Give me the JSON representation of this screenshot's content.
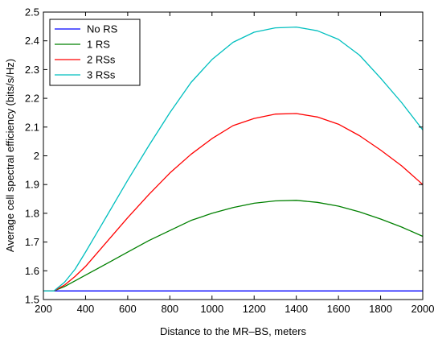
{
  "chart_data": {
    "type": "line",
    "title": "",
    "xlabel": "Distance to the MR–BS, meters",
    "ylabel": "Average cell spectral efficiency (bits/s/Hz)",
    "xlim": [
      200,
      2000
    ],
    "ylim": [
      1.5,
      2.5
    ],
    "x_ticks": [
      "200",
      "400",
      "600",
      "800",
      "1000",
      "1200",
      "1400",
      "1600",
      "1800",
      "2000"
    ],
    "y_ticks": [
      "1.5",
      "1.6",
      "1.7",
      "1.8",
      "1.9",
      "2",
      "2.1",
      "2.2",
      "2.3",
      "2.4",
      "2.5"
    ],
    "grid": false,
    "legend_position": "top-left",
    "x": [
      200,
      250,
      300,
      350,
      400,
      500,
      600,
      700,
      800,
      900,
      1000,
      1100,
      1200,
      1300,
      1400,
      1500,
      1600,
      1700,
      1800,
      1900,
      2000
    ],
    "series": [
      {
        "name": "No RS",
        "color": "#0000ff",
        "values": [
          1.53,
          1.53,
          1.53,
          1.53,
          1.53,
          1.53,
          1.53,
          1.53,
          1.53,
          1.53,
          1.53,
          1.53,
          1.53,
          1.53,
          1.53,
          1.53,
          1.53,
          1.53,
          1.53,
          1.53,
          1.53
        ]
      },
      {
        "name": "1 RS",
        "color": "#008000",
        "values": [
          1.53,
          1.53,
          1.545,
          1.565,
          1.585,
          1.625,
          1.665,
          1.705,
          1.74,
          1.775,
          1.8,
          1.82,
          1.835,
          1.843,
          1.845,
          1.838,
          1.825,
          1.805,
          1.78,
          1.752,
          1.72
        ]
      },
      {
        "name": "2 RSs",
        "color": "#ff0000",
        "values": [
          1.53,
          1.53,
          1.55,
          1.58,
          1.615,
          1.7,
          1.785,
          1.865,
          1.94,
          2.005,
          2.06,
          2.105,
          2.13,
          2.145,
          2.147,
          2.135,
          2.11,
          2.07,
          2.02,
          1.965,
          1.9
        ]
      },
      {
        "name": "3 RSs",
        "color": "#00bfbf",
        "values": [
          1.53,
          1.53,
          1.56,
          1.605,
          1.665,
          1.79,
          1.915,
          2.035,
          2.15,
          2.255,
          2.335,
          2.395,
          2.43,
          2.445,
          2.448,
          2.435,
          2.405,
          2.35,
          2.27,
          2.185,
          2.09
        ]
      }
    ]
  }
}
